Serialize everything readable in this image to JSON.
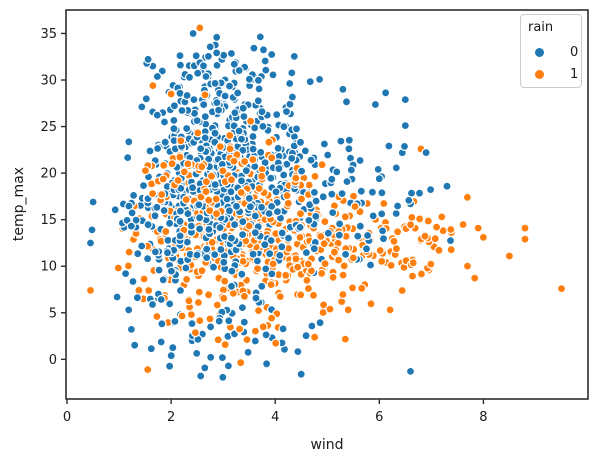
{
  "figure": {
    "background": "#ffffff"
  },
  "chart_data": {
    "type": "scatter",
    "title": "",
    "xlabel": "wind",
    "ylabel": "temp_max",
    "xlim": [
      -0.02,
      10.01
    ],
    "ylim": [
      -4.26,
      37.52
    ],
    "xticks": [
      0,
      2,
      4,
      6,
      8
    ],
    "yticks": [
      0,
      5,
      10,
      15,
      20,
      25,
      30,
      35
    ],
    "grid": false,
    "legend": {
      "title": "rain",
      "position": "upper-right",
      "entries": [
        {
          "label": "0",
          "color": "#1f77b4"
        },
        {
          "label": "1",
          "color": "#ff7f0e"
        }
      ]
    },
    "marker": {
      "radius": 4.0,
      "edge_color": "#ffffff",
      "edge_width": 1.2
    },
    "data_bounds": {
      "wind": [
        0.4,
        9.5
      ],
      "temp_max": [
        -1.6,
        35.6
      ]
    },
    "seed": 42,
    "series": [
      {
        "name": "0",
        "color": "#1f77b4",
        "total_points": 850,
        "clusters": [
          {
            "cx": 2.85,
            "cy": 22.0,
            "sx": 0.78,
            "sy": 4.8,
            "n": 470,
            "clip": [
              1.0,
              5.0,
              8.0,
              35.3
            ]
          },
          {
            "cx": 2.5,
            "cy": 13.0,
            "sx": 1.0,
            "sy": 3.5,
            "n": 170,
            "clip": [
              0.4,
              5.0,
              2.0,
              20.0
            ]
          },
          {
            "cx": 4.9,
            "cy": 18.0,
            "sx": 1.05,
            "sy": 5.0,
            "n": 120,
            "clip": [
              3.5,
              7.4,
              3.0,
              32.0
            ]
          },
          {
            "cx": 2.9,
            "cy": 3.2,
            "sx": 1.1,
            "sy": 2.1,
            "n": 50,
            "clip": [
              0.8,
              6.0,
              -2.0,
              7.5
            ]
          },
          {
            "cx": 3.1,
            "cy": 31.0,
            "sx": 0.85,
            "sy": 2.0,
            "n": 30,
            "clip": [
              1.5,
              5.5,
              28.0,
              35.3
            ]
          }
        ],
        "extra_points": [
          [
            6.6,
            -1.3
          ],
          [
            3.1,
            -0.7
          ],
          [
            4.5,
            -1.6
          ],
          [
            7.3,
            18.6
          ],
          [
            6.9,
            22.2
          ],
          [
            6.5,
            27.9
          ],
          [
            6.5,
            25.1
          ],
          [
            0.5,
            16.9
          ],
          [
            0.45,
            12.5
          ],
          [
            5.3,
            29.0
          ]
        ]
      },
      {
        "name": "1",
        "color": "#ff7f0e",
        "total_points": 626,
        "clusters": [
          {
            "cx": 3.3,
            "cy": 12.5,
            "sx": 1.0,
            "sy": 3.3,
            "n": 380,
            "clip": [
              0.9,
              6.6,
              2.0,
              22.0
            ]
          },
          {
            "cx": 5.6,
            "cy": 12.3,
            "sx": 1.15,
            "sy": 2.7,
            "n": 120,
            "clip": [
              4.2,
              8.9,
              4.0,
              19.0
            ]
          },
          {
            "cx": 2.95,
            "cy": 19.5,
            "sx": 0.85,
            "sy": 2.4,
            "n": 80,
            "clip": [
              1.3,
              5.3,
              15.5,
              27.0
            ]
          },
          {
            "cx": 3.4,
            "cy": 4.0,
            "sx": 1.1,
            "sy": 1.9,
            "n": 30,
            "clip": [
              1.2,
              6.3,
              -1.2,
              7.2
            ]
          }
        ],
        "extra_points": [
          [
            2.55,
            35.6
          ],
          [
            1.55,
            -1.1
          ],
          [
            9.5,
            7.6
          ],
          [
            8.8,
            14.1
          ],
          [
            8.8,
            12.9
          ],
          [
            8.5,
            11.1
          ],
          [
            7.9,
            14.1
          ],
          [
            8.0,
            13.1
          ],
          [
            7.2,
            15.3
          ],
          [
            7.1,
            14.2
          ],
          [
            0.45,
            7.4
          ],
          [
            6.8,
            22.6
          ],
          [
            1.65,
            29.4
          ],
          [
            2.0,
            28.5
          ],
          [
            2.65,
            28.4
          ],
          [
            4.9,
            20.9
          ]
        ]
      }
    ]
  }
}
